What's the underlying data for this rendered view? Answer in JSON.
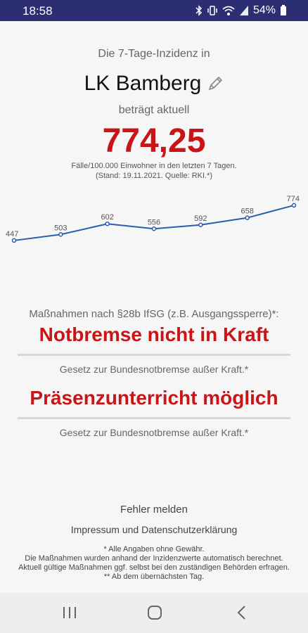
{
  "status_bar": {
    "time": "18:58",
    "battery": "54%",
    "icons": [
      "bluetooth-icon",
      "vibrate-icon",
      "wifi-icon",
      "signal-icon",
      "battery-icon"
    ]
  },
  "intro_text": "Die 7-Tage-Inzidenz in",
  "district": "LK Bamberg",
  "edit_icon": "pencil-icon",
  "currently_text": "beträgt aktuell",
  "incidence_value": "774,25",
  "subtitle_line1": "Fälle/100.000 Einwohner in den letzten 7 Tagen.",
  "subtitle_line2": "(Stand: 19.11.2021. Quelle: RKI.*)",
  "chart_data": {
    "type": "line",
    "values": [
      447,
      503,
      602,
      556,
      592,
      658,
      774
    ],
    "labels": [
      "447",
      "503",
      "602",
      "556",
      "592",
      "658",
      "774"
    ],
    "color": "#2a5db0",
    "grid": false
  },
  "measures_label": "Maßnahmen nach §28b IfSG (z.B. Ausgangssperre)*:",
  "status_notbremse": "Notbremse nicht in Kraft",
  "law_note_1": "Gesetz zur Bundesnotbremse außer Kraft.*",
  "status_school": "Präsenzunterricht möglich",
  "law_note_2": "Gesetz zur Bundesnotbremse außer Kraft.*",
  "report_error": "Fehler melden",
  "imprint": "Impressum und Datenschutzerklärung",
  "footnotes": [
    "* Alle Angaben ohne Gewähr.",
    "Die Maßnahmen wurden anhand der Inzidenzwerte automatisch berechnet.",
    "Aktuell gültige Maßnahmen ggf. selbst bei den zuständigen Behörden erfragen.",
    "** Ab dem übernächsten Tag."
  ],
  "colors": {
    "status_bar": "#2b2e73",
    "accent_red": "#c91517",
    "line_blue": "#2a5db0"
  },
  "nav_icons": [
    "recent-apps-icon",
    "home-icon",
    "back-icon"
  ]
}
